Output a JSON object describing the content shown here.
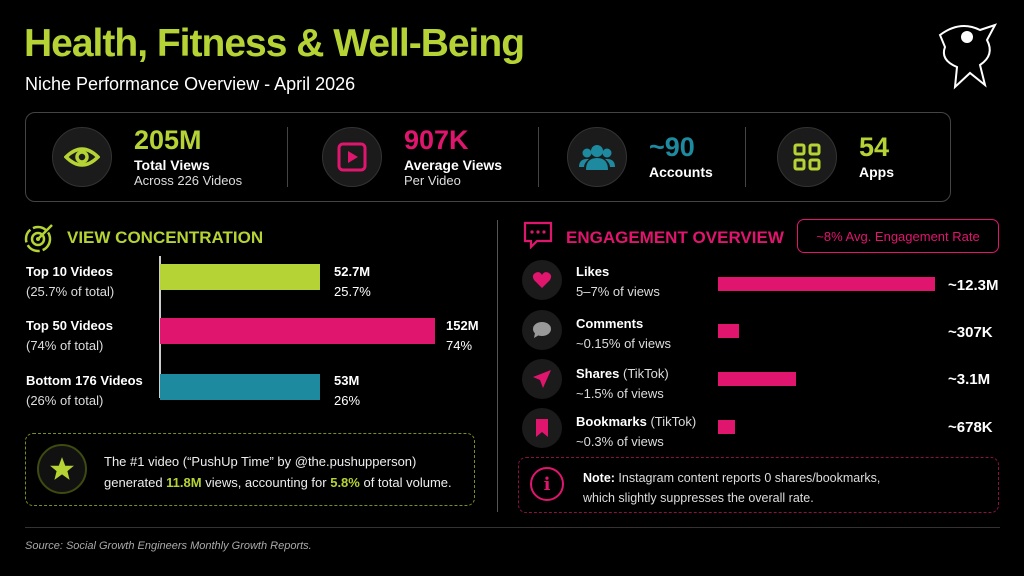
{
  "header": {
    "title": "Health, Fitness & Well-Being",
    "subtitle": "Niche Performance Overview - April 2026"
  },
  "stats": [
    {
      "value": "205M",
      "label": "Total Views",
      "sub": "Across 226 Videos",
      "icon": "eye-icon",
      "color": "#b5d334"
    },
    {
      "value": "907K",
      "label": "Average Views",
      "sub": "Per Video",
      "icon": "play-icon",
      "color": "#e0156e"
    },
    {
      "value": "~90",
      "label": "Accounts",
      "icon": "users-icon",
      "color": "#1e8aa0"
    },
    {
      "value": "54",
      "label": "Apps",
      "icon": "apps-icon",
      "color": "#b5d334"
    }
  ],
  "view_concentration": {
    "title": "VIEW CONCENTRATION",
    "rows": [
      {
        "label": "Top 10 Videos",
        "sub": "(25.7% of total)",
        "value": "52.7M",
        "pct": "25.7%",
        "color": "#b5d334"
      },
      {
        "label": "Top 50 Videos",
        "sub": "(74% of total)",
        "value": "152M",
        "pct": "74%",
        "color": "#e0156e"
      },
      {
        "label": "Bottom 176 Videos",
        "sub": "(26% of total)",
        "value": "53M",
        "pct": "26%",
        "color": "#1e8aa0"
      }
    ],
    "highlight": {
      "line1": "The #1 video (“PushUp Time” by @the.pushupperson)",
      "pre": "generated ",
      "views": "11.8M",
      "mid": " views, accounting for ",
      "share": "5.8%",
      "post": " of total volume."
    }
  },
  "engagement": {
    "title": "ENGAGEMENT OVERVIEW",
    "badge": "~8% Avg. Engagement Rate",
    "rows": [
      {
        "label": "Likes",
        "tag": "",
        "sub": "5–7% of views",
        "value": "~12.3M",
        "icon": "heart-icon"
      },
      {
        "label": "Comments",
        "tag": "",
        "sub": "~0.15% of views",
        "value": "~307K",
        "icon": "comment-icon"
      },
      {
        "label": "Shares",
        "tag": "(TikTok)",
        "sub": "~1.5% of views",
        "value": "~3.1M",
        "icon": "send-icon"
      },
      {
        "label": "Bookmarks",
        "tag": "(TikTok)",
        "sub": "~0.3% of views",
        "value": "~678K",
        "icon": "bookmark-icon"
      }
    ],
    "note": {
      "bold": "Note:",
      "text": " Instagram content reports 0 shares/bookmarks,",
      "line2": "which slightly suppresses the overall rate."
    }
  },
  "footer": {
    "source": "Source: Social Growth Engineers Monthly Growth Reports."
  }
}
